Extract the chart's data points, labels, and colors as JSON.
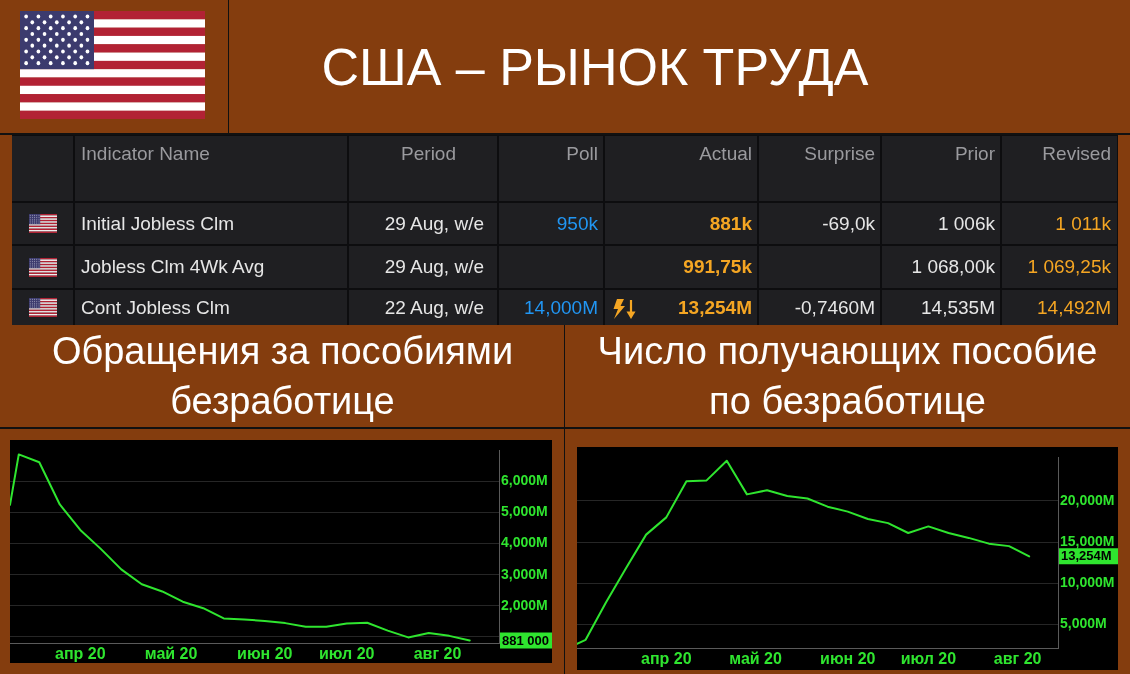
{
  "chart_data": [
    {
      "type": "other",
      "title": "США – РЫНОК ТРУДА",
      "categories": [
        "Indicator Name",
        "Period",
        "Poll",
        "Actual",
        "Surprise",
        "Prior",
        "Revised"
      ],
      "cell_labels": [
        [
          "Initial Jobless Clm",
          "29 Aug, w/e",
          "950k",
          "881k",
          "-69,0k",
          "1 006k",
          "1 011k"
        ],
        [
          "Jobless Clm 4Wk Avg",
          "29 Aug, w/e",
          null,
          "991,75k",
          null,
          "1 068,00k",
          "1 069,25k"
        ],
        [
          "Cont Jobless Clm",
          "22 Aug, w/e",
          "14,000M",
          "13,254M",
          "-0,7460M",
          "14,535M",
          "14,492M"
        ]
      ]
    },
    {
      "type": "line",
      "title": "Обращения за пособиями безработице",
      "x": [
        "2020-03-25",
        "2020-03-28",
        "2020-04-04",
        "2020-04-11",
        "2020-04-18",
        "2020-04-25",
        "2020-05-02",
        "2020-05-09",
        "2020-05-16",
        "2020-05-23",
        "2020-05-30",
        "2020-06-06",
        "2020-06-13",
        "2020-06-20",
        "2020-06-27",
        "2020-07-04",
        "2020-07-11",
        "2020-07-18",
        "2020-07-25",
        "2020-08-01",
        "2020-08-08",
        "2020-08-15",
        "2020-08-22",
        "2020-08-29"
      ],
      "series": [
        {
          "color": "#2fe52f",
          "values": [
            5250,
            6870,
            6620,
            5260,
            4440,
            3830,
            3170,
            2690,
            2460,
            2130,
            1920,
            1590,
            1560,
            1510,
            1440,
            1320,
            1320,
            1430,
            1450,
            1200,
            980,
            1120,
            1030,
            881
          ]
        }
      ],
      "xlim": [
        "2020-03-25",
        "2020-09-08"
      ],
      "xticks": [
        {
          "value": "2020-04-18",
          "label": "апр 20"
        },
        {
          "value": "2020-05-19",
          "label": "май 20"
        },
        {
          "value": "2020-06-20",
          "label": "июн 20"
        },
        {
          "value": "2020-07-18",
          "label": "июл 20"
        },
        {
          "value": "2020-08-18",
          "label": "авг 20"
        }
      ],
      "ylim": [
        800,
        7000
      ],
      "yticks": [
        {
          "value": 1000,
          "label": null
        },
        {
          "value": 2000,
          "label": "2,000M"
        },
        {
          "value": 3000,
          "label": "3,000M"
        },
        {
          "value": 4000,
          "label": "4,000M"
        },
        {
          "value": 5000,
          "label": "5,000M"
        },
        {
          "value": 6000,
          "label": "6,000M"
        }
      ],
      "grid": "y",
      "marker": "none",
      "annotations": [
        "881 000"
      ]
    },
    {
      "type": "line",
      "title": "Число получающих пособие по безработице",
      "x": [
        "2020-03-18",
        "2020-03-21",
        "2020-03-28",
        "2020-04-04",
        "2020-04-11",
        "2020-04-18",
        "2020-04-25",
        "2020-05-02",
        "2020-05-09",
        "2020-05-16",
        "2020-05-23",
        "2020-05-30",
        "2020-06-06",
        "2020-06-13",
        "2020-06-20",
        "2020-06-27",
        "2020-07-04",
        "2020-07-11",
        "2020-07-18",
        "2020-07-25",
        "2020-08-01",
        "2020-08-08",
        "2020-08-15",
        "2020-08-22"
      ],
      "series": [
        {
          "color": "#2fe52f",
          "values": [
            2600,
            3100,
            7600,
            11800,
            15900,
            18000,
            22400,
            22500,
            24900,
            20800,
            21300,
            20600,
            20300,
            19300,
            18700,
            17800,
            17300,
            16100,
            16900,
            16100,
            15500,
            14800,
            14500,
            13254
          ]
        }
      ],
      "xlim": [
        "2020-03-18",
        "2020-09-01"
      ],
      "xticks": [
        {
          "value": "2020-04-18",
          "label": "апр 20"
        },
        {
          "value": "2020-05-19",
          "label": "май 20"
        },
        {
          "value": "2020-06-20",
          "label": "июн 20"
        },
        {
          "value": "2020-07-18",
          "label": "июл 20"
        },
        {
          "value": "2020-08-18",
          "label": "авг 20"
        }
      ],
      "ylim": [
        2100,
        25300
      ],
      "yticks": [
        {
          "value": 5000,
          "label": "5,000M"
        },
        {
          "value": 10000,
          "label": "10,000M"
        },
        {
          "value": 15000,
          "label": "15,000M"
        },
        {
          "value": 20000,
          "label": "20,000M"
        }
      ],
      "grid": "y",
      "marker": "none",
      "annotations": [
        "13,254M"
      ]
    }
  ]
}
